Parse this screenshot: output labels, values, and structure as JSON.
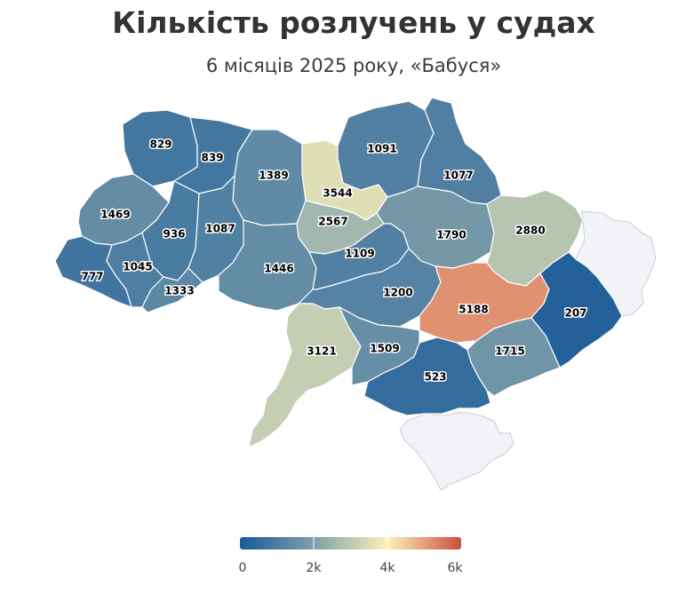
{
  "title": "Кількість розлучень у судах",
  "subtitle": "6 місяців 2025 року, «Бабуся»",
  "colors": {
    "scale": [
      "#195a98",
      "#7f9faa",
      "#fbf2b8",
      "#cc4e40"
    ],
    "occupied": "#f2f3f7"
  },
  "legend": {
    "min": 0,
    "max": 6000,
    "ticks": [
      "0",
      "2k",
      "4k",
      "6k"
    ]
  },
  "chart_data": {
    "type": "choropleth",
    "regions": [
      {
        "label": "829",
        "value": 829
      },
      {
        "label": "839",
        "value": 839
      },
      {
        "label": "1389",
        "value": 1389
      },
      {
        "label": "3544",
        "value": 3544
      },
      {
        "label": "1091",
        "value": 1091
      },
      {
        "label": "1077",
        "value": 1077
      },
      {
        "label": "1469",
        "value": 1469
      },
      {
        "label": "936",
        "value": 936
      },
      {
        "label": "1087",
        "value": 1087
      },
      {
        "label": "2567",
        "value": 2567
      },
      {
        "label": "1790",
        "value": 1790
      },
      {
        "label": "2880",
        "value": 2880
      },
      {
        "label": "777",
        "value": 777
      },
      {
        "label": "1045",
        "value": 1045
      },
      {
        "label": "1446",
        "value": 1446
      },
      {
        "label": "1109",
        "value": 1109
      },
      {
        "label": "1333",
        "value": 1333
      },
      {
        "label": "1200",
        "value": 1200
      },
      {
        "label": "5188",
        "value": 5188
      },
      {
        "label": "207",
        "value": 207
      },
      {
        "label": "3121",
        "value": 3121
      },
      {
        "label": "1509",
        "value": 1509
      },
      {
        "label": "1715",
        "value": 1715
      },
      {
        "label": "523",
        "value": 523
      }
    ]
  }
}
